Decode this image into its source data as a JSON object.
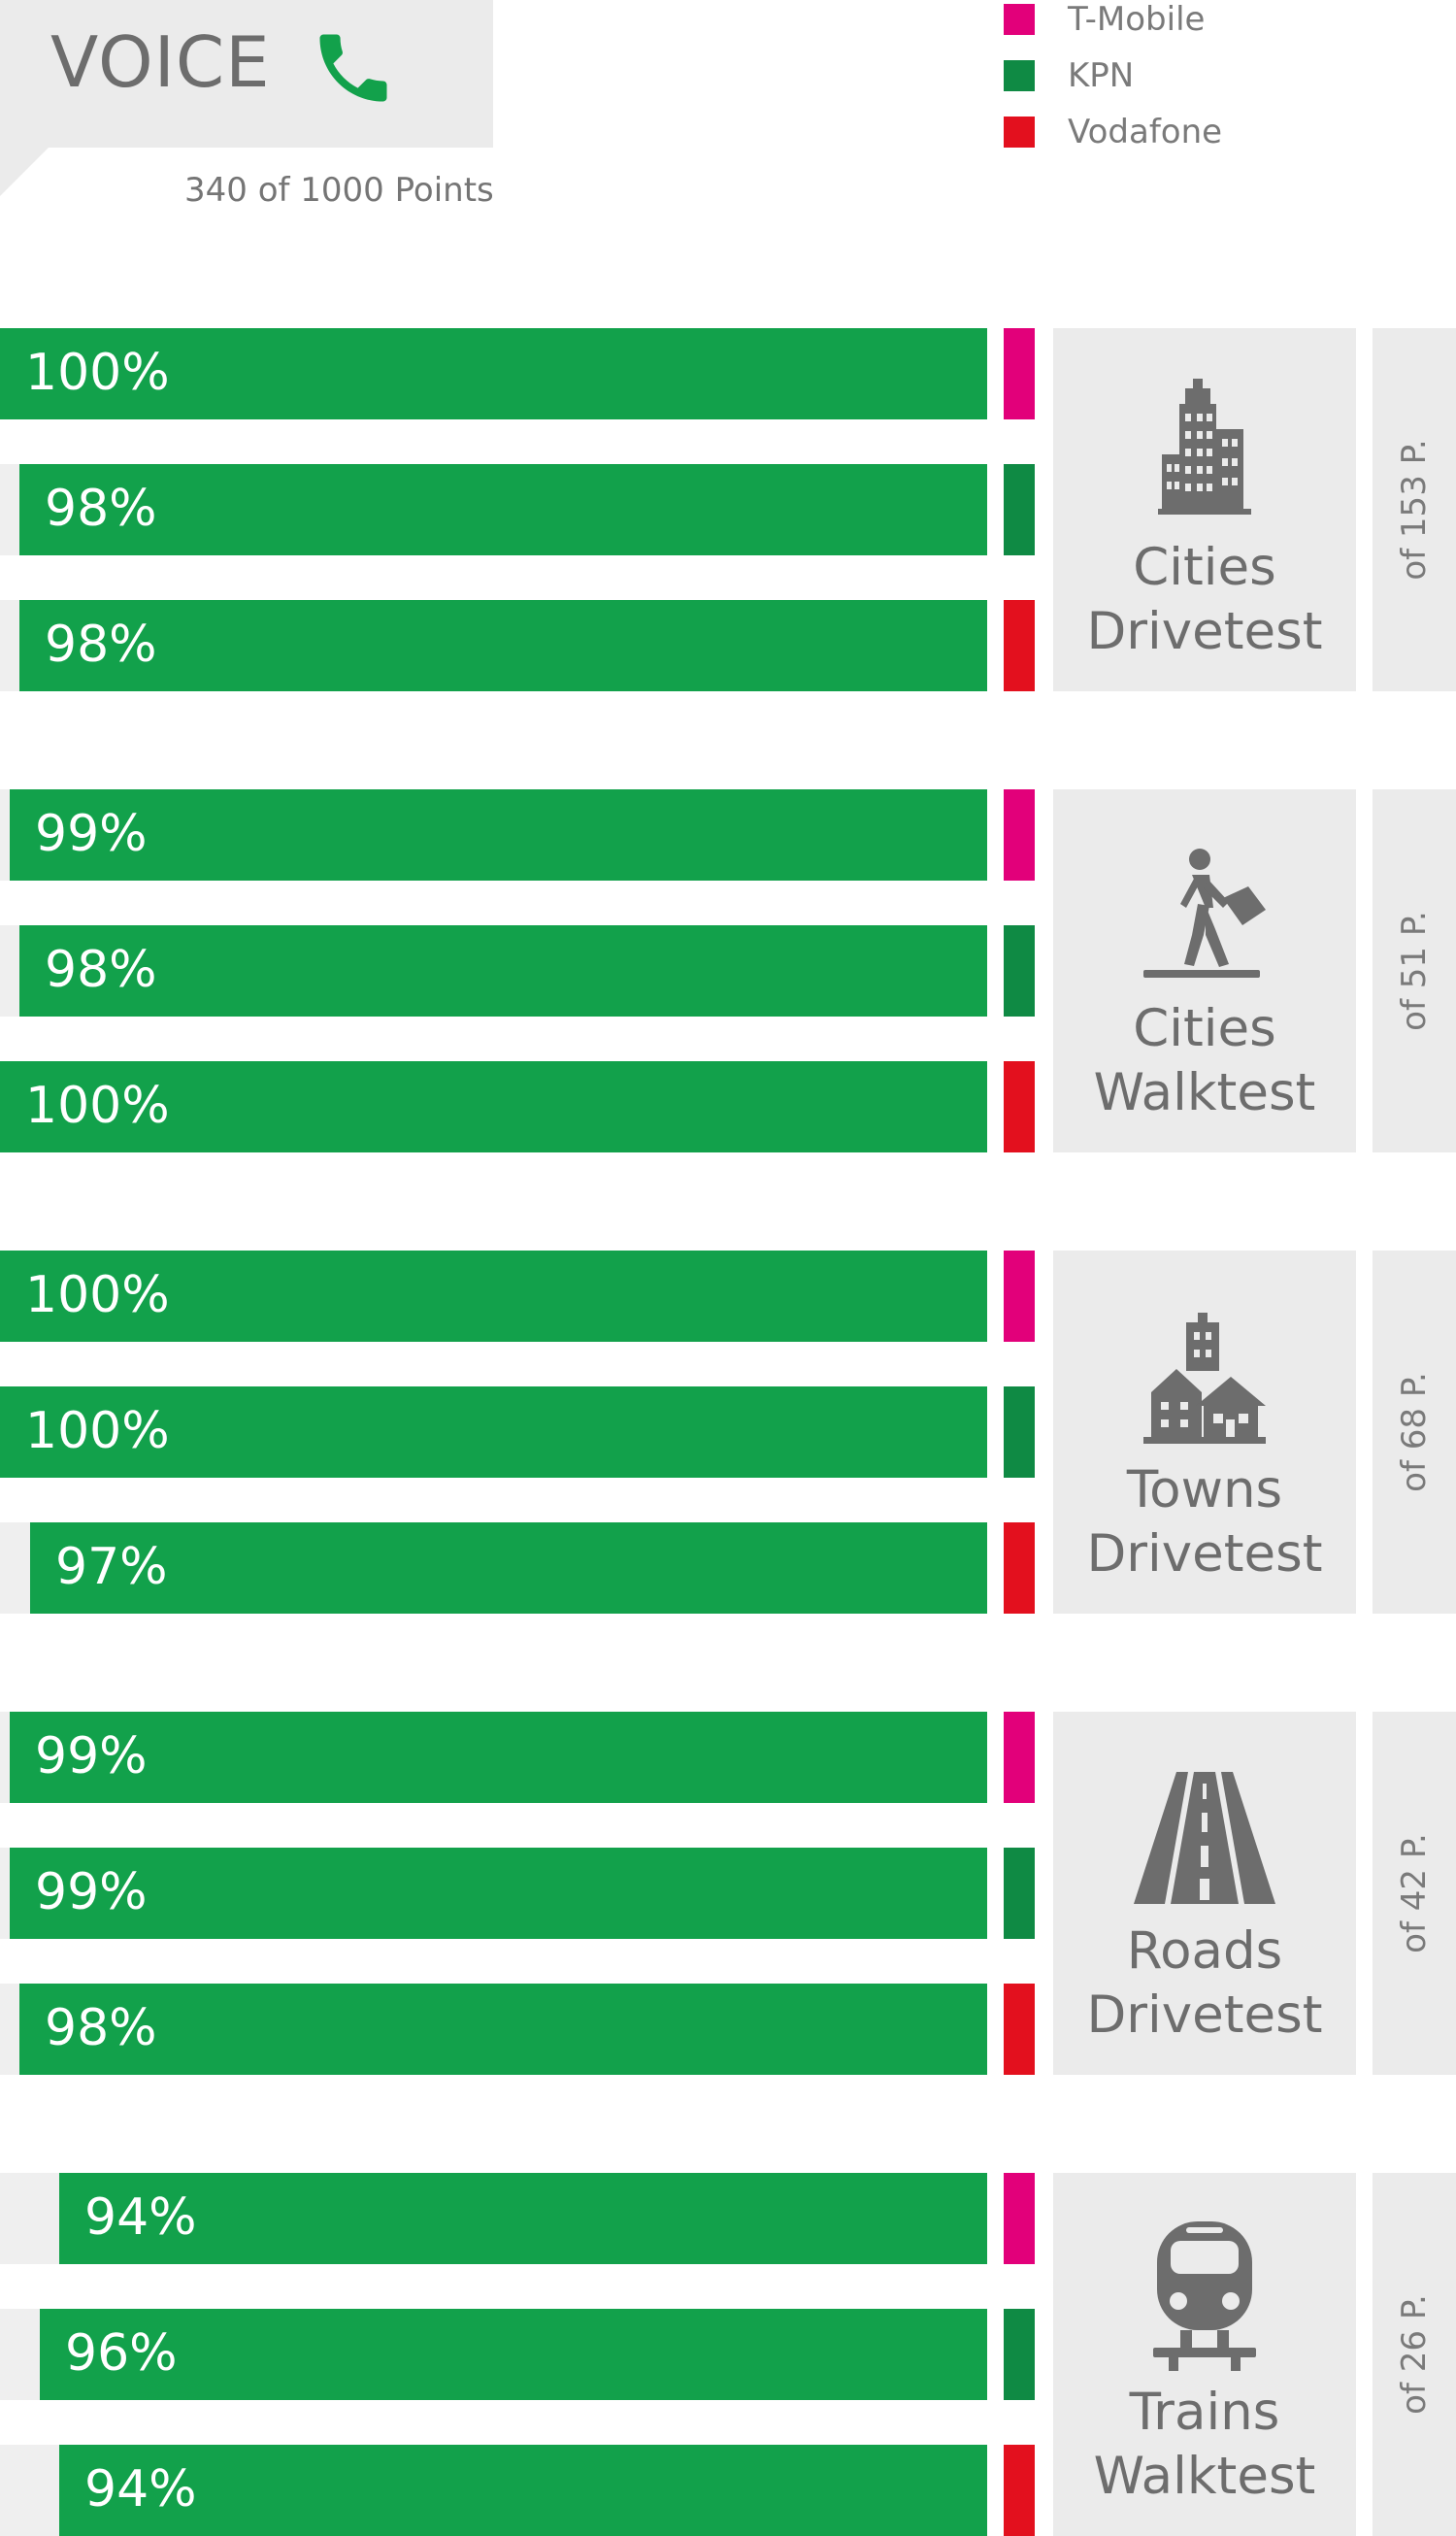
{
  "header": {
    "title": "VOICE",
    "icon": "phone-icon",
    "subtitle": "340 of 1000 Points"
  },
  "colors": {
    "bar": "#12a14b",
    "track": "#efefef",
    "panel": "#ebebeb",
    "t_mobile": "#e2007a",
    "kpn": "#0f8a44",
    "vodafone": "#e3101e",
    "icon": "#6d6d6d",
    "phone": "#12a14b"
  },
  "legend": [
    {
      "label": "T-Mobile",
      "color": "#e2007a"
    },
    {
      "label": "KPN",
      "color": "#0f8a44"
    },
    {
      "label": "Vodafone",
      "color": "#e3101e"
    }
  ],
  "chart_data": {
    "type": "bar",
    "orientation": "horizontal",
    "value_unit": "%",
    "xlim": [
      0,
      100
    ],
    "grid": false,
    "legend_position": "top-right",
    "series_names": [
      "T-Mobile",
      "KPN",
      "Vodafone"
    ],
    "groups": [
      {
        "name_lines": [
          "Cities",
          "Drivetest"
        ],
        "icon": "city-buildings-icon",
        "points_label": "of 153 P.",
        "values": [
          100,
          98,
          98
        ],
        "labels": [
          "100%",
          "98%",
          "98%"
        ]
      },
      {
        "name_lines": [
          "Cities",
          "Walktest"
        ],
        "icon": "pedestrian-icon",
        "points_label": "of 51 P.",
        "values": [
          99,
          98,
          100
        ],
        "labels": [
          "99%",
          "98%",
          "100%"
        ]
      },
      {
        "name_lines": [
          "Towns",
          "Drivetest"
        ],
        "icon": "town-houses-icon",
        "points_label": "of 68 P.",
        "values": [
          100,
          100,
          97
        ],
        "labels": [
          "100%",
          "100%",
          "97%"
        ]
      },
      {
        "name_lines": [
          "Roads",
          "Drivetest"
        ],
        "icon": "road-icon",
        "points_label": "of 42 P.",
        "values": [
          99,
          99,
          98
        ],
        "labels": [
          "99%",
          "99%",
          "98%"
        ]
      },
      {
        "name_lines": [
          "Trains",
          "Walktest"
        ],
        "icon": "train-icon",
        "points_label": "of 26 P.",
        "values": [
          94,
          96,
          94
        ],
        "labels": [
          "94%",
          "96%",
          "94%"
        ]
      }
    ]
  }
}
